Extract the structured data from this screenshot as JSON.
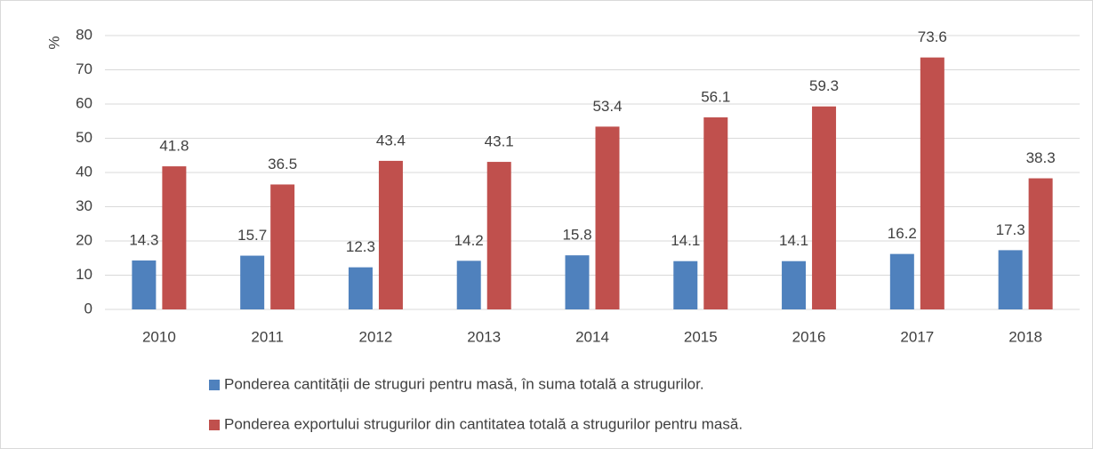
{
  "chart_data": {
    "type": "bar",
    "ylabel": "%",
    "categories": [
      "2010",
      "2011",
      "2012",
      "2013",
      "2014",
      "2015",
      "2016",
      "2017",
      "2018"
    ],
    "series": [
      {
        "name": "Ponderea cantității de struguri pentru masă, în suma totală a strugurilor.",
        "color": "#4f81bd",
        "values": [
          14.3,
          15.7,
          12.3,
          14.2,
          15.8,
          14.1,
          14.1,
          16.2,
          17.3
        ]
      },
      {
        "name": "Ponderea exportului strugurilor din cantitatea totală a strugurilor pentru masă.",
        "color": "#c0504d",
        "values": [
          41.8,
          36.5,
          43.4,
          43.1,
          53.4,
          56.1,
          59.3,
          73.6,
          38.3
        ]
      }
    ],
    "ylim": [
      0,
      80
    ],
    "yticks": [
      0,
      10,
      20,
      30,
      40,
      50,
      60,
      70,
      80
    ],
    "grid": true
  }
}
